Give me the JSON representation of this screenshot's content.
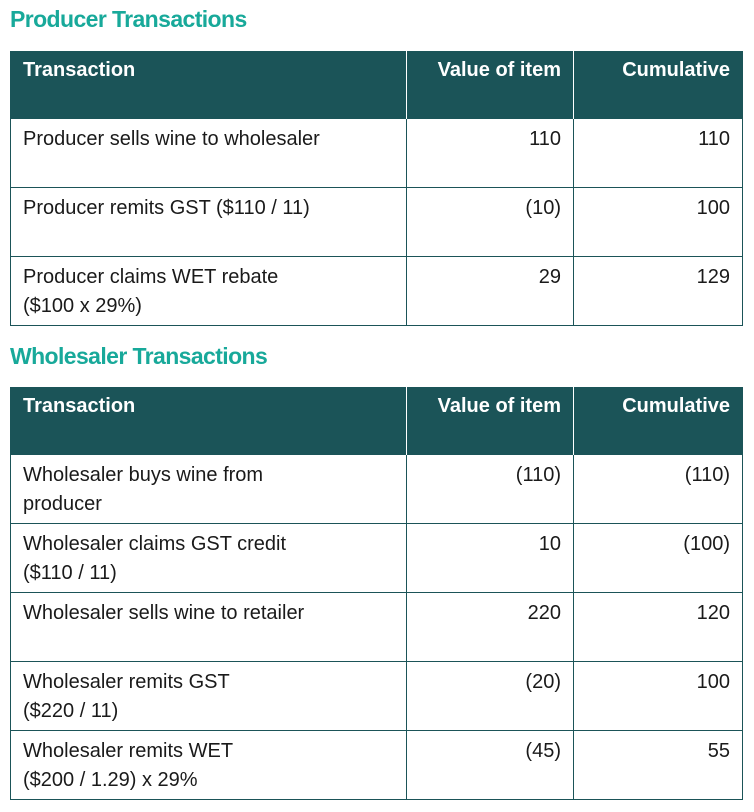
{
  "producer": {
    "title": "Producer Transactions",
    "headers": {
      "transaction": "Transaction",
      "value": "Value of item",
      "cumulative": "Cumulative"
    },
    "rows": [
      {
        "transaction": "Producer sells wine to wholesaler",
        "value": "110",
        "cumulative": "110"
      },
      {
        "transaction": "Producer remits GST ($110 / 11)",
        "value": "(10)",
        "cumulative": "100"
      },
      {
        "transaction": "Producer claims WET rebate\n($100 x 29%)",
        "value": "29",
        "cumulative": "129"
      }
    ]
  },
  "wholesaler": {
    "title": "Wholesaler Transactions",
    "headers": {
      "transaction": "Transaction",
      "value": "Value of item",
      "cumulative": "Cumulative"
    },
    "rows": [
      {
        "transaction": "Wholesaler buys wine from\nproducer",
        "value": "(110)",
        "cumulative": "(110)"
      },
      {
        "transaction": "Wholesaler claims GST credit\n($110 / 11)",
        "value": "10",
        "cumulative": "(100)"
      },
      {
        "transaction": "Wholesaler sells wine to retailer",
        "value": "220",
        "cumulative": "120"
      },
      {
        "transaction": "Wholesaler remits GST\n($220 / 11)",
        "value": "(20)",
        "cumulative": "100"
      },
      {
        "transaction": "Wholesaler remits WET\n($200 / 1.29) x 29%",
        "value": "(45)",
        "cumulative": "55"
      }
    ]
  },
  "colors": {
    "section_title": "#18a99a",
    "header_background": "#1b5458",
    "header_text": "#ffffff",
    "cell_border": "#1b5458"
  }
}
